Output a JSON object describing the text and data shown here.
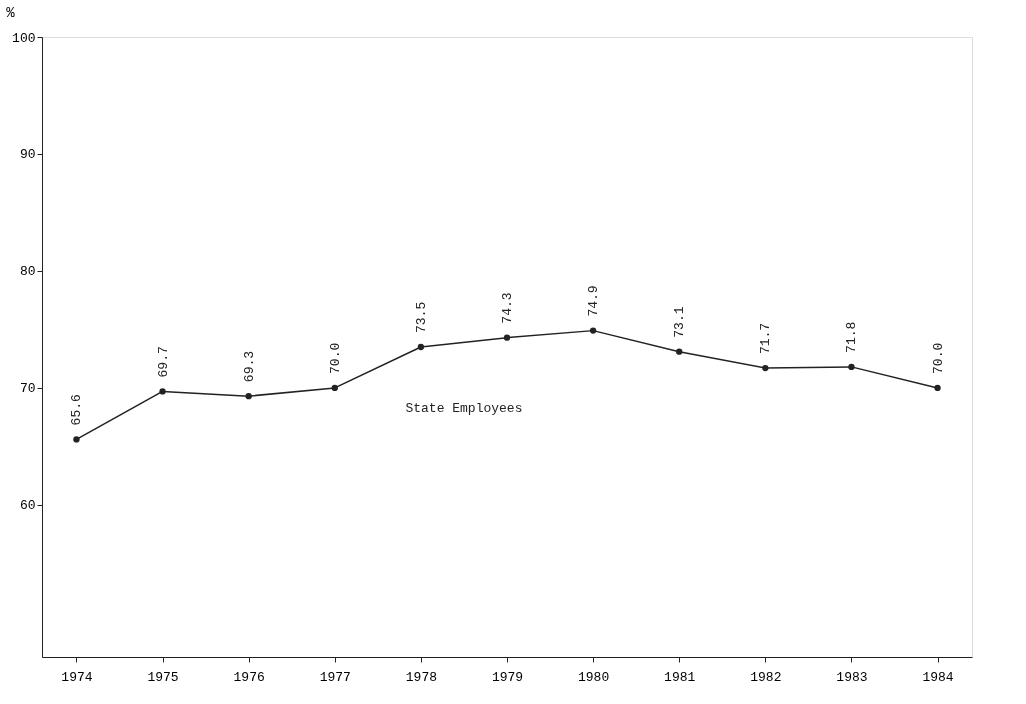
{
  "chart_data": {
    "type": "line",
    "ylabel": "%",
    "categories": [
      "1974",
      "1975",
      "1976",
      "1977",
      "1978",
      "1979",
      "1980",
      "1981",
      "1982",
      "1983",
      "1984"
    ],
    "series": [
      {
        "name": "State Employees",
        "color": "#222222",
        "values": [
          65.6,
          69.7,
          69.3,
          70.0,
          73.5,
          74.3,
          74.9,
          73.1,
          71.7,
          71.8,
          70.0
        ],
        "value_labels": [
          "65.6",
          "69.7",
          "69.3",
          "70.0",
          "73.5",
          "74.3",
          "74.9",
          "73.1",
          "71.7",
          "71.8",
          "70.0"
        ]
      }
    ],
    "ylim": [
      47,
      100
    ],
    "yticks": [
      60,
      70,
      80,
      90,
      100
    ],
    "grid": false,
    "legend": false,
    "marker": "circle",
    "line_style": "solid"
  }
}
